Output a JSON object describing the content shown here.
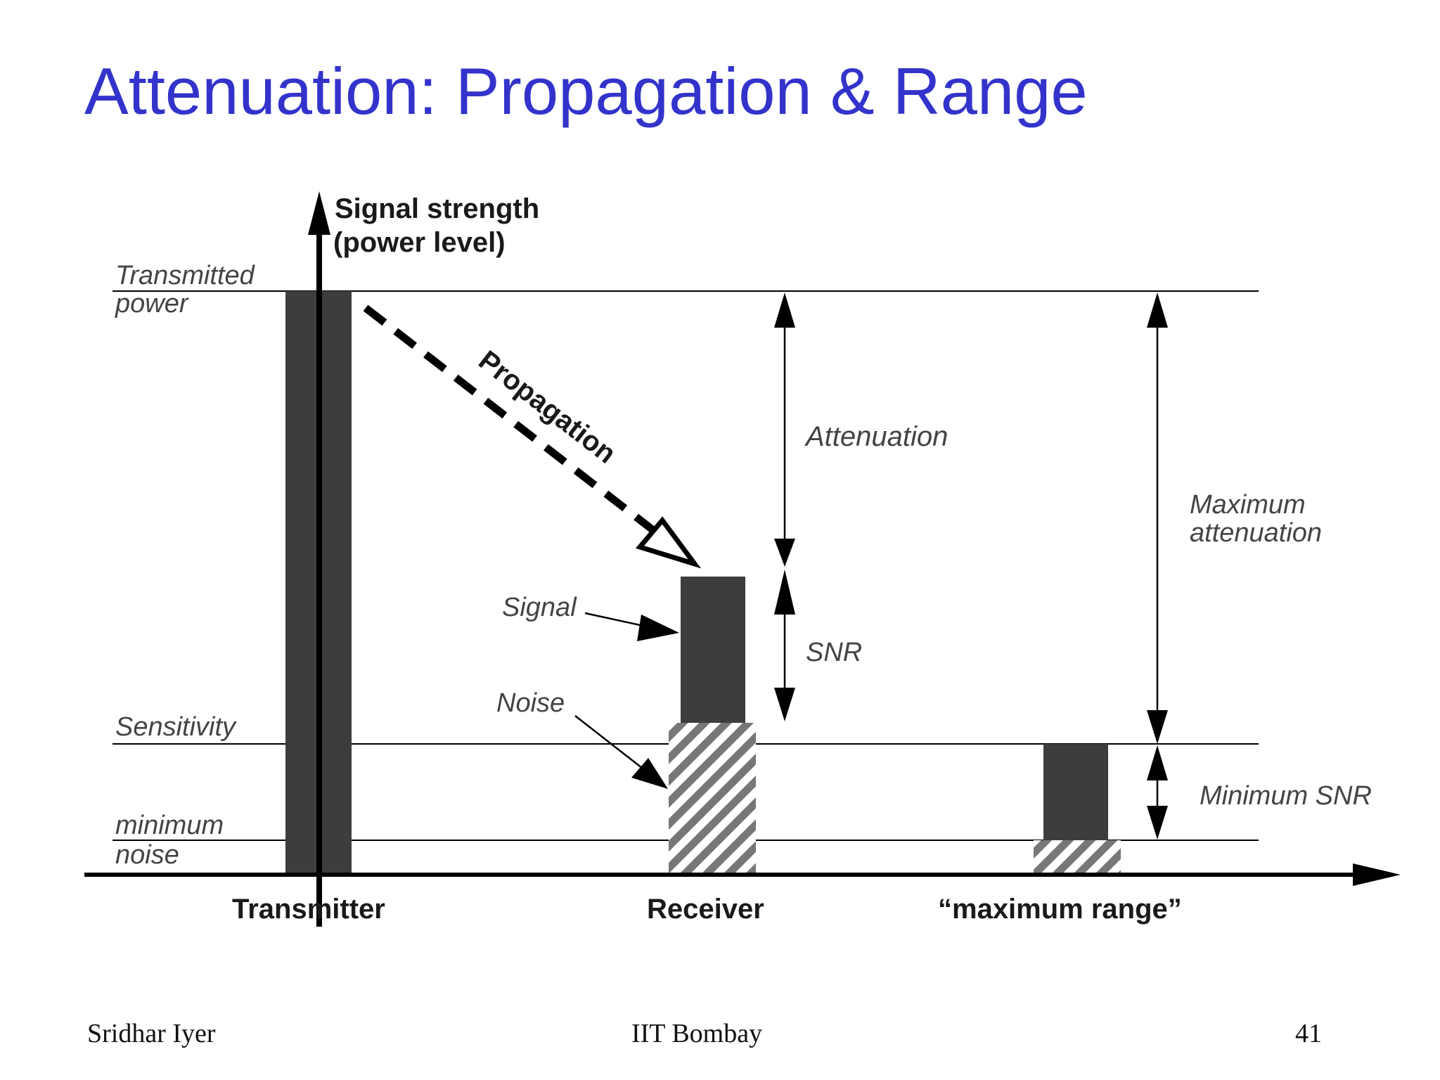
{
  "slide": {
    "title": "Attenuation: Propagation & Range",
    "title_color": "#3333cc"
  },
  "diagram": {
    "y_axis_label_line1": "Signal strength",
    "y_axis_label_line2": "(power level)",
    "levels": {
      "transmitted_power_line1": "Transmitted",
      "transmitted_power_line2": "power",
      "sensitivity": "Sensitivity",
      "minimum_noise_line1": "minimum",
      "minimum_noise_line2": "noise"
    },
    "x_labels": {
      "transmitter": "Transmitter",
      "receiver": "Receiver",
      "maximum_range": "“maximum range”"
    },
    "annotations": {
      "propagation": "Propagation",
      "attenuation": "Attenuation",
      "snr": "SNR",
      "signal": "Signal",
      "noise": "Noise",
      "maximum_attenuation_line1": "Maximum",
      "maximum_attenuation_line2": "attenuation",
      "minimum_snr": "Minimum SNR"
    },
    "colors": {
      "bar_fill": "#3d3d3d",
      "noise_hatch": "#777777",
      "line": "#000000"
    }
  },
  "footer": {
    "author": "Sridhar Iyer",
    "institution": "IIT Bombay",
    "page_number": "41"
  }
}
